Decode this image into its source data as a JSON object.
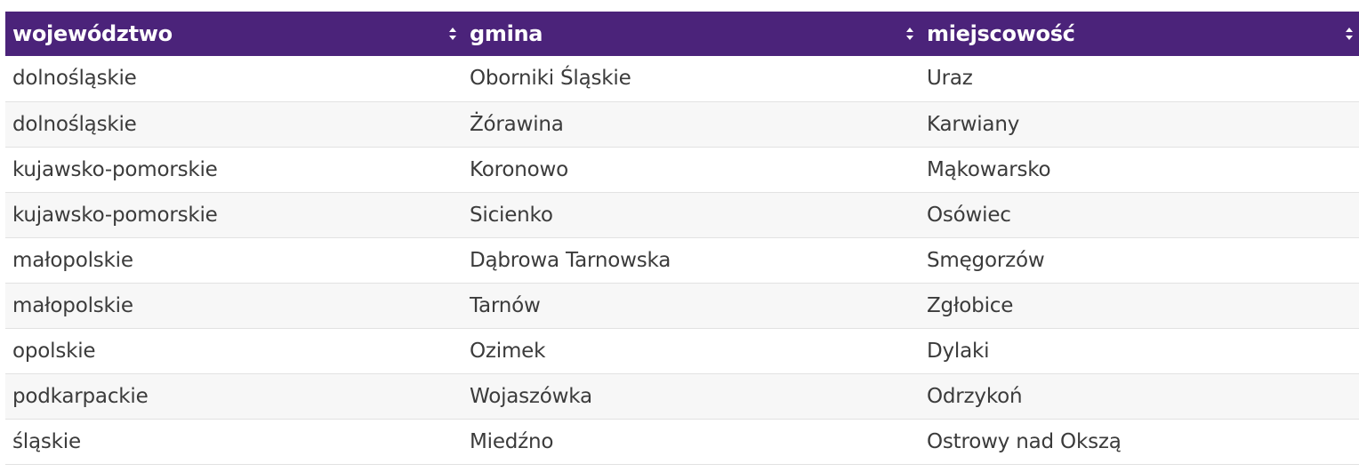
{
  "table": {
    "headers": [
      {
        "label": "województwo"
      },
      {
        "label": "gmina"
      },
      {
        "label": "miejscowość"
      }
    ],
    "sort_icon": "sort-updown-icon",
    "colors": {
      "header_bg": "#4b237a",
      "header_text": "#ffffff",
      "row_alt_bg": "#f7f7f7",
      "cell_text": "#3b3b3b"
    },
    "rows": [
      [
        "dolnośląskie",
        "Oborniki Śląskie",
        "Uraz"
      ],
      [
        "dolnośląskie",
        "Żórawina",
        "Karwiany"
      ],
      [
        "kujawsko-pomorskie",
        "Koronowo",
        "Mąkowarsko"
      ],
      [
        "kujawsko-pomorskie",
        "Sicienko",
        "Osówiec"
      ],
      [
        "małopolskie",
        "Dąbrowa Tarnowska",
        "Smęgorzów"
      ],
      [
        "małopolskie",
        "Tarnów",
        "Zgłobice"
      ],
      [
        "opolskie",
        "Ozimek",
        "Dylaki"
      ],
      [
        "podkarpackie",
        "Wojaszówka",
        "Odrzykoń"
      ],
      [
        "śląskie",
        "Miedźno",
        "Ostrowy nad Okszą"
      ]
    ]
  }
}
